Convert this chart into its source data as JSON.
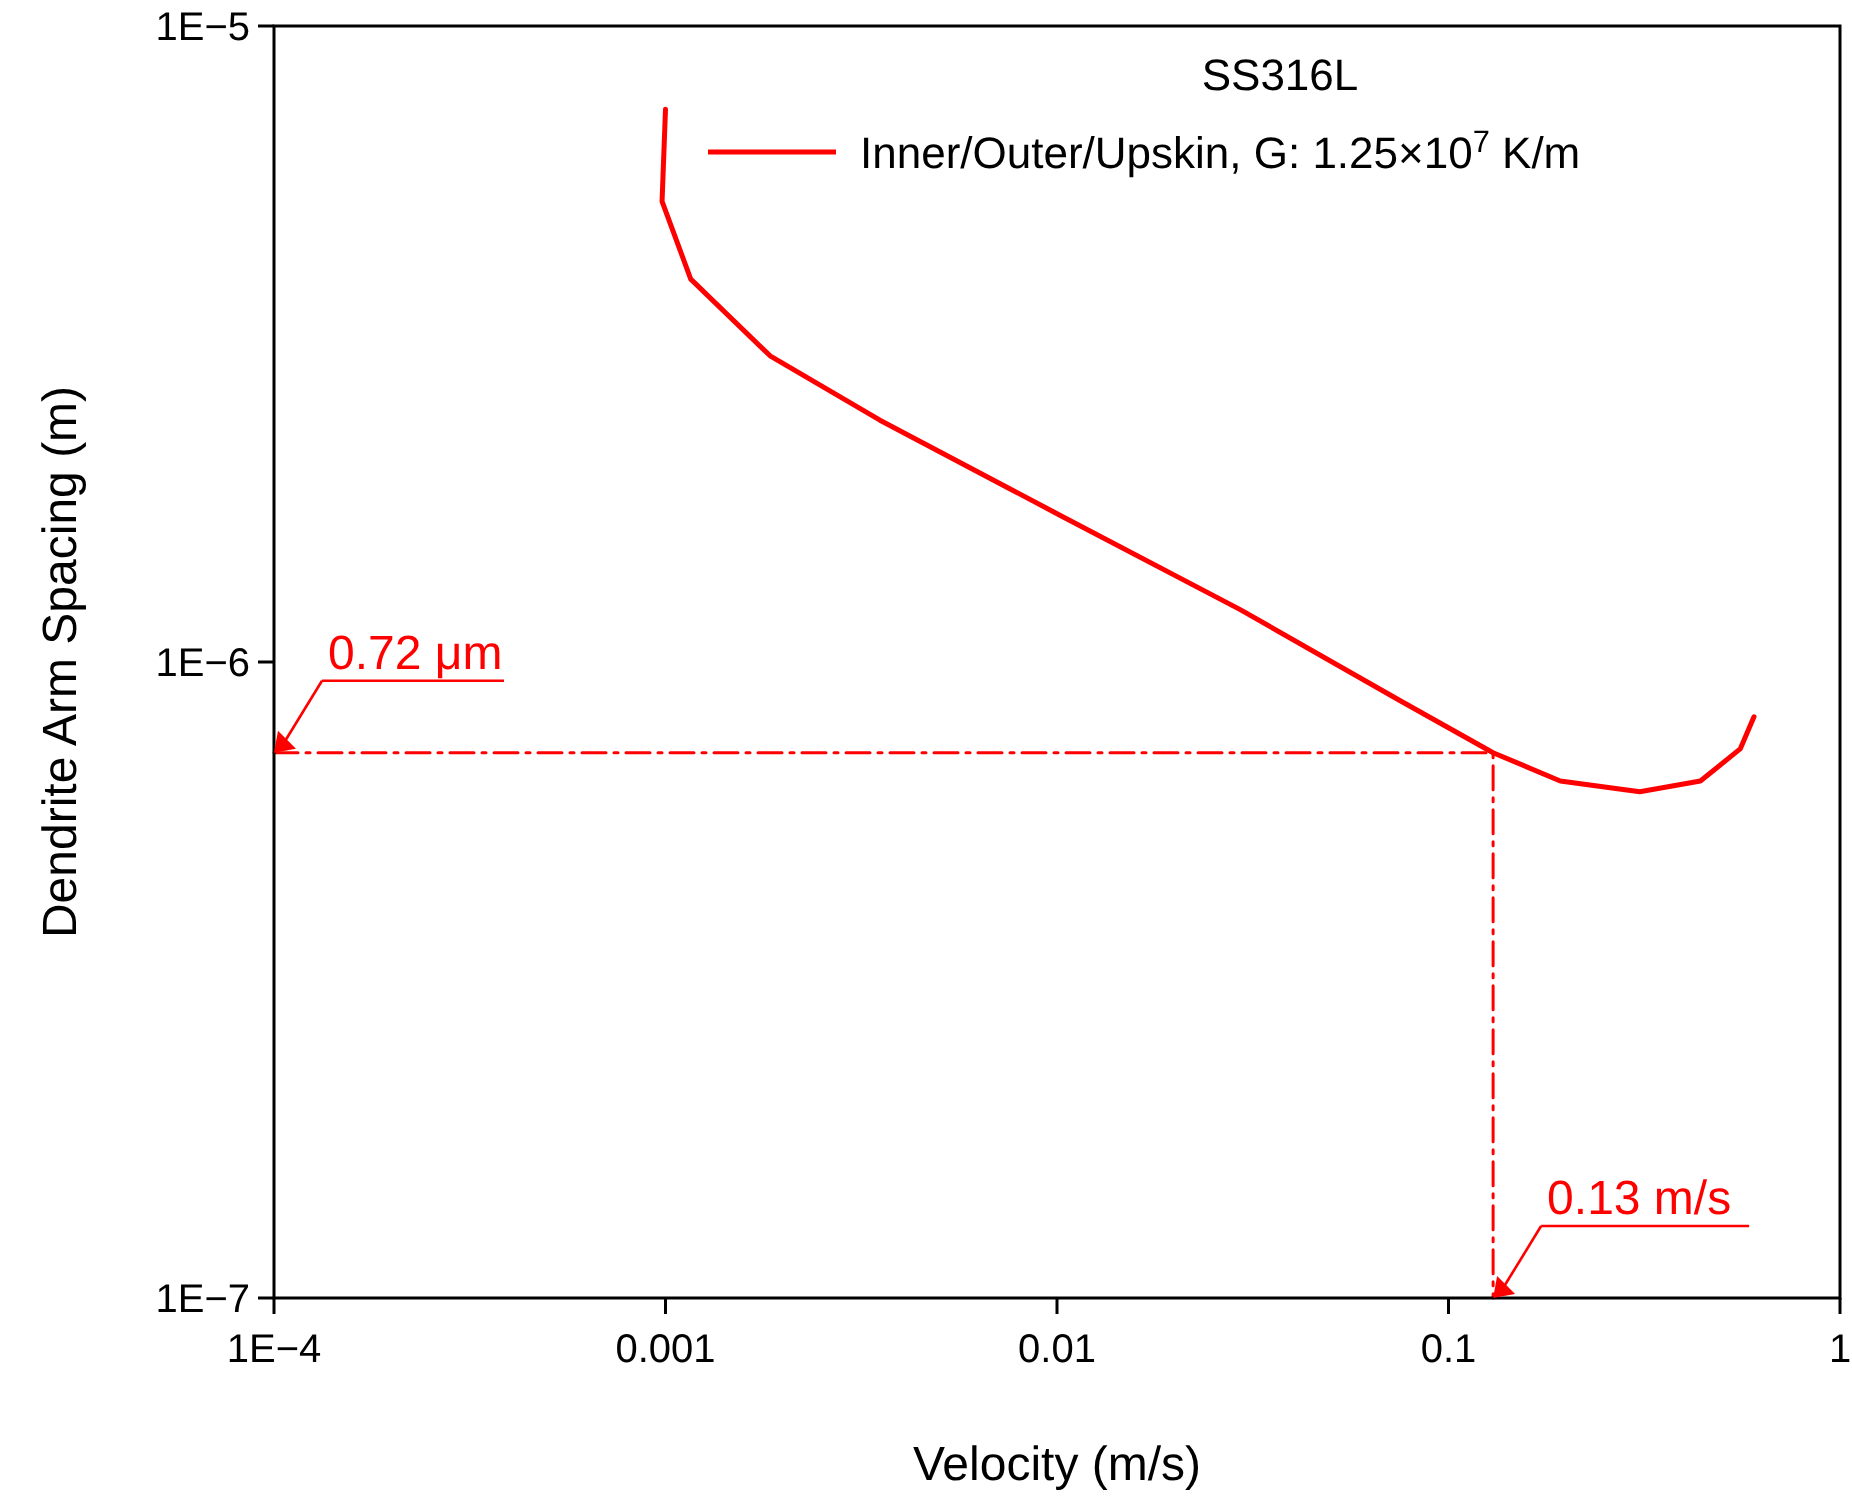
{
  "chart_data": {
    "type": "line",
    "xlabel": "Velocity (m/s)",
    "ylabel": "Dendrite Arm Spacing (m)",
    "log": "xy",
    "legend": "top right",
    "legend_title": "SS316L",
    "xlim": [
      0.0001,
      1
    ],
    "xticks": [
      {
        "value": 0.0001,
        "label": "1E−4"
      },
      0.001,
      0.01,
      0.1,
      1
    ],
    "ylim": [
      1e-07,
      1e-05
    ],
    "yticks": [
      {
        "value": 1e-07,
        "label": "1E−7"
      },
      {
        "value": 1e-06,
        "label": "1E−6"
      },
      {
        "value": 1e-05,
        "label": "1E−5"
      }
    ],
    "series": [
      {
        "name": "Inner/Outer/Upskin, G: 1.25×10$^{7}$ K/m",
        "color": "#ff0000",
        "x": [
          0.001,
          0.00098,
          0.00116,
          0.00185,
          0.00353,
          0.0102,
          0.0293,
          0.0751,
          0.13,
          0.193,
          0.308,
          0.44,
          0.556,
          0.603
        ],
        "values": [
          7.4e-06,
          5.3e-06,
          4e-06,
          3.03e-06,
          2.4e-06,
          1.7e-06,
          1.21e-06,
          8.7e-07,
          7.2e-07,
          6.5e-07,
          6.25e-07,
          6.5e-07,
          7.3e-07,
          8.2e-07
        ]
      },
      {
        "color": "#ff0000",
        "line_style": "dashed",
        "x": [
          0.0001,
          0.13,
          0.13
        ],
        "values": [
          7.2e-07,
          7.2e-07,
          1e-07
        ]
      }
    ],
    "annotations": [
      {
        "text": "0.72 μm",
        "x": 0.0001,
        "y": 7.2e-07
      },
      {
        "text": "0.13 m/s",
        "x": 0.13,
        "y": 1e-07
      }
    ]
  }
}
